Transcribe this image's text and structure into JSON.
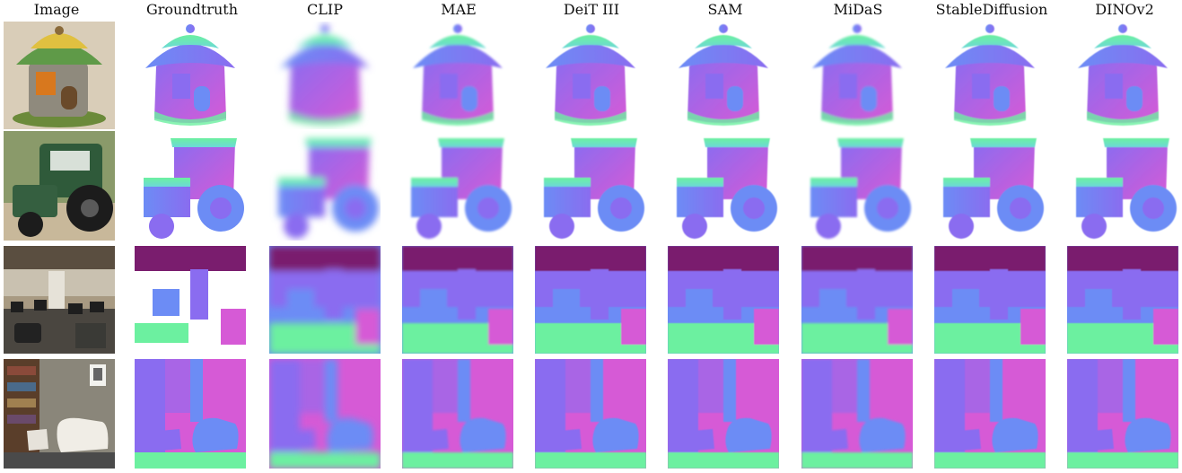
{
  "columns": [
    {
      "title": "Image"
    },
    {
      "title": "Groundtruth"
    },
    {
      "title": "CLIP"
    },
    {
      "title": "MAE"
    },
    {
      "title": "DeiT III"
    },
    {
      "title": "SAM"
    },
    {
      "title": "MiDaS"
    },
    {
      "title": "StableDiffusion"
    },
    {
      "title": "DINOv2"
    }
  ],
  "rows": [
    {
      "scene": "toy-house"
    },
    {
      "scene": "toy-tractor"
    },
    {
      "scene": "office"
    },
    {
      "scene": "living-room"
    }
  ],
  "colors": {
    "normal_magenta": "#d65ad6",
    "normal_violet": "#8a6cf0",
    "normal_blue": "#6c8cf5",
    "normal_green": "#6cf0a0",
    "normal_teal": "#6cd8d8",
    "normal_purple_dark": "#7a1d6e"
  }
}
